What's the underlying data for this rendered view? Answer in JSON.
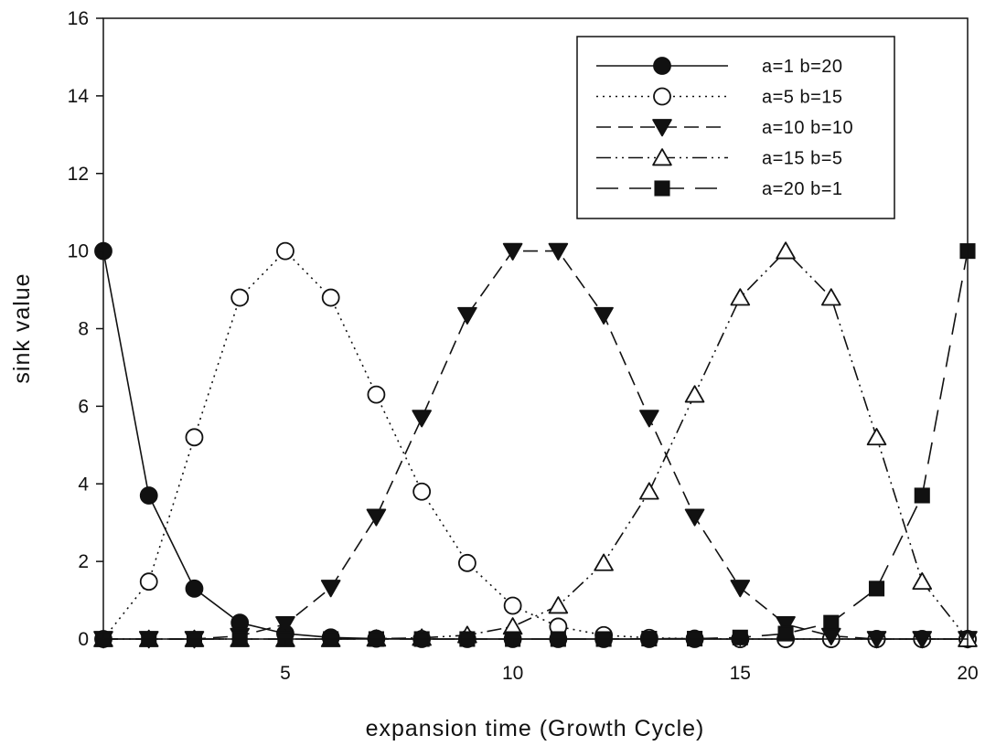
{
  "chart_data": {
    "type": "line",
    "title": "",
    "xlabel": "expansion time (Growth Cycle)",
    "ylabel": "sink value",
    "xlim": [
      1,
      20
    ],
    "ylim": [
      0,
      16
    ],
    "x_ticks": [
      5,
      10,
      15,
      20
    ],
    "y_ticks": [
      0,
      2,
      4,
      6,
      8,
      10,
      12,
      14,
      16
    ],
    "grid": false,
    "legend_position": "top-right",
    "x": [
      1,
      2,
      3,
      4,
      5,
      6,
      7,
      8,
      9,
      10,
      11,
      12,
      13,
      14,
      15,
      16,
      17,
      18,
      19,
      20
    ],
    "series": [
      {
        "name": "a=1 b=20",
        "marker": "filled-circle",
        "line_style": "solid",
        "values": [
          10,
          3.7,
          1.3,
          0.42,
          0.14,
          0.04,
          0.01,
          0,
          0,
          0,
          0,
          0,
          0,
          0,
          0,
          0,
          0,
          0,
          0,
          0
        ]
      },
      {
        "name": "a=5 b=15",
        "marker": "open-circle",
        "line_style": "dotted",
        "values": [
          0,
          1.48,
          5.2,
          8.8,
          10,
          8.8,
          6.3,
          3.8,
          1.96,
          0.86,
          0.32,
          0.1,
          0.03,
          0.01,
          0,
          0,
          0,
          0,
          0,
          0
        ]
      },
      {
        "name": "a=10 b=10",
        "marker": "filled-triangle-down",
        "line_style": "dashed",
        "values": [
          0,
          0,
          0,
          0.08,
          0.38,
          1.32,
          3.15,
          5.7,
          8.35,
          10,
          10,
          8.35,
          5.7,
          3.15,
          1.32,
          0.38,
          0.08,
          0,
          0,
          0
        ]
      },
      {
        "name": "a=15 b=5",
        "marker": "open-triangle-up",
        "line_style": "dash-dot-dot",
        "values": [
          0,
          0,
          0,
          0,
          0,
          0,
          0.01,
          0.03,
          0.1,
          0.32,
          0.86,
          1.96,
          3.8,
          6.3,
          8.8,
          10,
          8.8,
          5.2,
          1.48,
          0
        ]
      },
      {
        "name": "a=20 b=1",
        "marker": "filled-square",
        "line_style": "long-dash",
        "values": [
          0,
          0,
          0,
          0,
          0,
          0,
          0,
          0,
          0,
          0,
          0,
          0,
          0.01,
          0.01,
          0.04,
          0.14,
          0.42,
          1.3,
          3.7,
          10
        ]
      }
    ]
  }
}
